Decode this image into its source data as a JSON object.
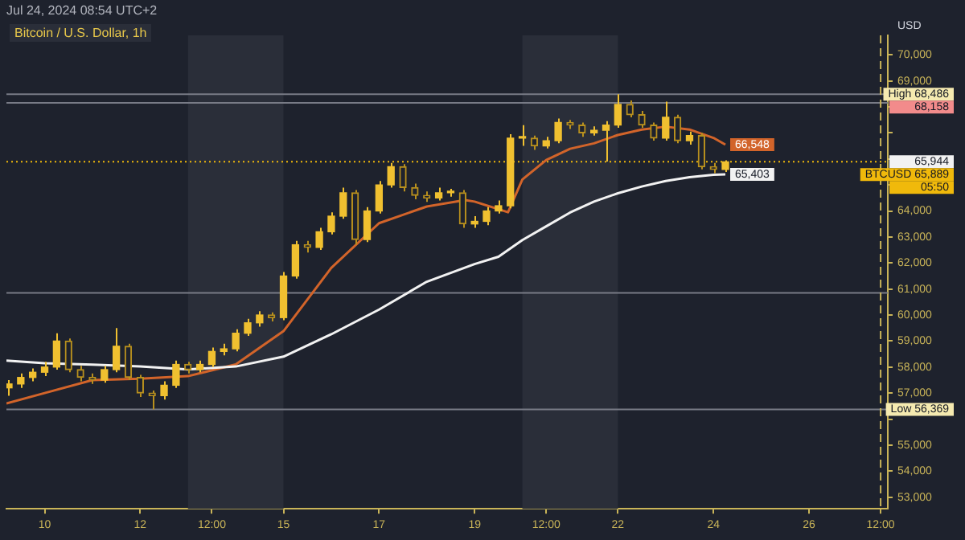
{
  "chart_data": {
    "type": "candlestick",
    "title": "Bitcoin / U.S. Dollar, 1h",
    "subtitle": "Jul 24, 2024 08:54 UTC+2",
    "ylabel": "USD",
    "xlim": [
      "2024-07-09T04:48",
      "2024-07-27T15:36"
    ],
    "xticks": [
      {
        "value": "2024-07-10",
        "label": "10"
      },
      {
        "value": "2024-07-12",
        "label": "12"
      },
      {
        "value": "2024-07-13T12:00",
        "label": "12:00"
      },
      {
        "value": "2024-07-15",
        "label": "15"
      },
      {
        "value": "2024-07-17",
        "label": "17"
      },
      {
        "value": "2024-07-19",
        "label": "19"
      },
      {
        "value": "2024-07-20T12:00",
        "label": "12:00"
      },
      {
        "value": "2024-07-22",
        "label": "22"
      },
      {
        "value": "2024-07-24",
        "label": "24"
      },
      {
        "value": "2024-07-26",
        "label": "26"
      },
      {
        "value": "2024-07-27T12:00",
        "label": "12:00"
      }
    ],
    "ylim": [
      52550,
      70750
    ],
    "yticks": [
      {
        "value": 53000,
        "label": "53,000"
      },
      {
        "value": 54000,
        "label": "54,000"
      },
      {
        "value": 55000,
        "label": "55,000"
      },
      {
        "value": 56000,
        "label": null
      },
      {
        "value": 57000,
        "label": "57,000"
      },
      {
        "value": 58000,
        "label": "58,000"
      },
      {
        "value": 59000,
        "label": "59,000"
      },
      {
        "value": 60000,
        "label": "60,000"
      },
      {
        "value": 61000,
        "label": "61,000"
      },
      {
        "value": 62000,
        "label": "62,000"
      },
      {
        "value": 63000,
        "label": "63,000"
      },
      {
        "value": 64000,
        "label": "64,000"
      },
      {
        "value": 65000,
        "label": null
      },
      {
        "value": 66000,
        "label": null
      },
      {
        "value": 67000,
        "label": null
      },
      {
        "value": 68000,
        "label": null
      },
      {
        "value": 69000,
        "label": "69,000"
      },
      {
        "value": 70000,
        "label": "70,000"
      }
    ],
    "grid": false,
    "series": [
      {
        "type": "line",
        "color": "#f2f2f2",
        "x": [
          "2024-07-09T04:48",
          "2024-07-10",
          "2024-07-11",
          "2024-07-12",
          "2024-07-13",
          "2024-07-14",
          "2024-07-15",
          "2024-07-16",
          "2024-07-17",
          "2024-07-18",
          "2024-07-19",
          "2024-07-19T12:00",
          "2024-07-20",
          "2024-07-20T12:00",
          "2024-07-21",
          "2024-07-21T12:00",
          "2024-07-22",
          "2024-07-22T12:00",
          "2024-07-23",
          "2024-07-23T12:00",
          "2024-07-24",
          "2024-07-24T06:00"
        ],
        "values": [
          58250,
          58150,
          58090,
          58020,
          57910,
          58020,
          58400,
          59260,
          60210,
          61280,
          61960,
          62240,
          62880,
          63410,
          63940,
          64360,
          64680,
          64940,
          65150,
          65300,
          65390,
          65403
        ],
        "value_labels": [
          null,
          null,
          null,
          null,
          null,
          null,
          null,
          null,
          null,
          null,
          null,
          null,
          null,
          null,
          null,
          null,
          null,
          null,
          null,
          null,
          null,
          "65,403"
        ]
      },
      {
        "type": "line",
        "color": "#d2642a",
        "x": [
          "2024-07-09T04:48",
          "2024-07-10",
          "2024-07-11",
          "2024-07-12",
          "2024-07-13",
          "2024-07-14",
          "2024-07-15",
          "2024-07-16",
          "2024-07-17",
          "2024-07-18",
          "2024-07-18T19:12",
          "2024-07-19",
          "2024-07-19T16:48",
          "2024-07-20",
          "2024-07-20T12:00",
          "2024-07-21",
          "2024-07-21T12:00",
          "2024-07-22",
          "2024-07-22T12:00",
          "2024-07-23",
          "2024-07-23T12:00",
          "2024-07-24",
          "2024-07-24T06:00"
        ],
        "values": [
          56600,
          57000,
          57500,
          57550,
          57650,
          58100,
          59380,
          61810,
          63530,
          64170,
          64420,
          64360,
          63950,
          65210,
          65960,
          66390,
          66600,
          66920,
          67130,
          67240,
          67130,
          66810,
          66548
        ],
        "value_labels": [
          null,
          null,
          null,
          null,
          null,
          null,
          null,
          null,
          null,
          null,
          null,
          null,
          null,
          null,
          null,
          null,
          null,
          null,
          null,
          null,
          null,
          null,
          "66,548"
        ]
      },
      {
        "type": "candlestick",
        "colors": [
          "#f0c030",
          "#f0c030",
          "#f0c030",
          "#f0c030",
          "#f0c030",
          "#b8901e",
          "#b8901e",
          "#b8901e",
          "#f0c030",
          "#f0c030",
          "#b8901e",
          "#b8901e",
          "#b8901e",
          "#f0c030",
          "#f0c030",
          "#b8901e",
          "#f0c030",
          "#f0c030",
          "#f0c030",
          "#f0c030",
          "#f0c030",
          "#f0c030",
          "#b8901e",
          "#f0c030",
          "#f0c030",
          "#b8901e",
          "#f0c030",
          "#f0c030",
          "#f0c030",
          "#b8901e",
          "#f0c030",
          "#f0c030",
          "#f0c030",
          "#b8901e",
          "#b8901e",
          "#b8901e",
          "#f0c030",
          "#f0c030",
          "#b8901e",
          "#f0c030",
          "#f0c030",
          "#f0c030",
          "#f0c030",
          "#f0c030",
          "#b8901e",
          "#f0c030",
          "#f0c030",
          "#b8901e",
          "#b8901e",
          "#f0c030",
          "#f0c030",
          "#f0c030",
          "#b8901e",
          "#b8901e",
          "#b8901e",
          "#f0c030",
          "#b8901e",
          "#f0c030",
          "#b8901e",
          "#b8901e",
          "#f0c030"
        ],
        "x": [
          "2024-07-09T06:00",
          "2024-07-09T12:00",
          "2024-07-09T18:00",
          "2024-07-10",
          "2024-07-10T06:00",
          "2024-07-10T12:00",
          "2024-07-10T18:00",
          "2024-07-11",
          "2024-07-11T06:00",
          "2024-07-11T12:00",
          "2024-07-11T18:00",
          "2024-07-12",
          "2024-07-12T06:00",
          "2024-07-12T12:00",
          "2024-07-12T18:00",
          "2024-07-13",
          "2024-07-13T06:00",
          "2024-07-13T12:00",
          "2024-07-13T18:00",
          "2024-07-14",
          "2024-07-14T06:00",
          "2024-07-14T12:00",
          "2024-07-14T18:00",
          "2024-07-15",
          "2024-07-15T06:00",
          "2024-07-15T12:00",
          "2024-07-15T18:00",
          "2024-07-16",
          "2024-07-16T06:00",
          "2024-07-16T12:00",
          "2024-07-16T18:00",
          "2024-07-17",
          "2024-07-17T06:00",
          "2024-07-17T12:00",
          "2024-07-17T18:00",
          "2024-07-18",
          "2024-07-18T06:00",
          "2024-07-18T12:00",
          "2024-07-18T18:00",
          "2024-07-19",
          "2024-07-19T06:00",
          "2024-07-19T12:00",
          "2024-07-19T18:00",
          "2024-07-20",
          "2024-07-20T06:00",
          "2024-07-20T12:00",
          "2024-07-20T18:00",
          "2024-07-21",
          "2024-07-21T06:00",
          "2024-07-21T12:00",
          "2024-07-21T18:00",
          "2024-07-22",
          "2024-07-22T06:00",
          "2024-07-22T12:00",
          "2024-07-22T18:00",
          "2024-07-23",
          "2024-07-23T06:00",
          "2024-07-23T12:00",
          "2024-07-23T18:00",
          "2024-07-24",
          "2024-07-24T06:00"
        ],
        "ohlc": [
          [
            57200,
            57500,
            56900,
            57350
          ],
          [
            57350,
            57750,
            57200,
            57600
          ],
          [
            57600,
            57950,
            57450,
            57800
          ],
          [
            57800,
            58200,
            57650,
            58000
          ],
          [
            58000,
            59300,
            57900,
            59000
          ],
          [
            59000,
            59100,
            57800,
            57900
          ],
          [
            57900,
            58050,
            57450,
            57600
          ],
          [
            57600,
            57750,
            57350,
            57500
          ],
          [
            57500,
            58050,
            57400,
            57900
          ],
          [
            57900,
            59500,
            57800,
            58800
          ],
          [
            58800,
            58900,
            57500,
            57600
          ],
          [
            57600,
            57700,
            56850,
            57000
          ],
          [
            57000,
            57100,
            56369,
            56900
          ],
          [
            56900,
            57450,
            56750,
            57300
          ],
          [
            57300,
            58250,
            57200,
            58100
          ],
          [
            58100,
            58200,
            57750,
            57900
          ],
          [
            57900,
            58250,
            57800,
            58100
          ],
          [
            58100,
            58750,
            58000,
            58600
          ],
          [
            58600,
            58900,
            58450,
            58700
          ],
          [
            58700,
            59450,
            58600,
            59300
          ],
          [
            59300,
            59850,
            59200,
            59700
          ],
          [
            59700,
            60150,
            59550,
            60000
          ],
          [
            60000,
            60100,
            59750,
            59900
          ],
          [
            59900,
            61650,
            59800,
            61500
          ],
          [
            61500,
            62850,
            61400,
            62700
          ],
          [
            62700,
            62850,
            62400,
            62600
          ],
          [
            62600,
            63350,
            62500,
            63200
          ],
          [
            63200,
            63950,
            63100,
            63800
          ],
          [
            63800,
            64900,
            63700,
            64700
          ],
          [
            64700,
            64800,
            62700,
            62900
          ],
          [
            62900,
            64150,
            62800,
            64000
          ],
          [
            64000,
            65150,
            63900,
            65000
          ],
          [
            65000,
            65850,
            64900,
            65700
          ],
          [
            65700,
            65800,
            64750,
            64900
          ],
          [
            64900,
            65050,
            64450,
            64600
          ],
          [
            64600,
            64750,
            64350,
            64500
          ],
          [
            64500,
            64900,
            64400,
            64700
          ],
          [
            64700,
            64850,
            64550,
            64700
          ],
          [
            64700,
            64800,
            63350,
            63500
          ],
          [
            63500,
            63800,
            63350,
            63600
          ],
          [
            63600,
            64150,
            63450,
            64000
          ],
          [
            64000,
            64400,
            63900,
            64200
          ],
          [
            64200,
            66950,
            64100,
            66800
          ],
          [
            66800,
            67300,
            66500,
            66800
          ],
          [
            66800,
            66900,
            66350,
            66500
          ],
          [
            66500,
            66850,
            66400,
            66700
          ],
          [
            66700,
            67550,
            66600,
            67400
          ],
          [
            67400,
            67500,
            67150,
            67300
          ],
          [
            67300,
            67400,
            66850,
            67000
          ],
          [
            67000,
            67250,
            66900,
            67100
          ],
          [
            67100,
            67450,
            65900,
            67300
          ],
          [
            67300,
            68486,
            67200,
            68100
          ],
          [
            68100,
            68250,
            67600,
            67700
          ],
          [
            67700,
            67850,
            67200,
            67300
          ],
          [
            67300,
            67400,
            66700,
            66800
          ],
          [
            66800,
            68200,
            66700,
            67600
          ],
          [
            67600,
            67700,
            66600,
            66700
          ],
          [
            66700,
            67050,
            66550,
            66900
          ],
          [
            66900,
            67000,
            65600,
            65700
          ],
          [
            65700,
            65850,
            65450,
            65600
          ],
          [
            65600,
            65944,
            65500,
            65889
          ]
        ]
      }
    ],
    "bands": [
      {
        "axis": "x",
        "from": "2024-07-13",
        "to": "2024-07-15",
        "color": "#2a2e39"
      },
      {
        "axis": "x",
        "from": "2024-07-20",
        "to": "2024-07-22",
        "color": "#2a2e39"
      }
    ],
    "ref_lines": [
      {
        "axis": "y",
        "value": 68486,
        "label": "High 68,486",
        "color": "#787b86"
      },
      {
        "axis": "y",
        "value": 68158,
        "label": "68,158",
        "color": "#787b86"
      },
      {
        "axis": "y",
        "value": 65889,
        "label": "BTCUSD 65,889",
        "color": "#f0b90b",
        "line_style": "dotted"
      },
      {
        "axis": "y",
        "value": 60850,
        "label": null,
        "color": "#787b86"
      },
      {
        "axis": "y",
        "value": 56369,
        "label": "Low 56,369",
        "color": "#787b86"
      },
      {
        "axis": "x",
        "value": "2024-07-27T12:00",
        "label": null,
        "color": "#c9b458",
        "line_style": "dashed"
      }
    ],
    "annotations": [
      "65,944",
      "05:50"
    ]
  }
}
